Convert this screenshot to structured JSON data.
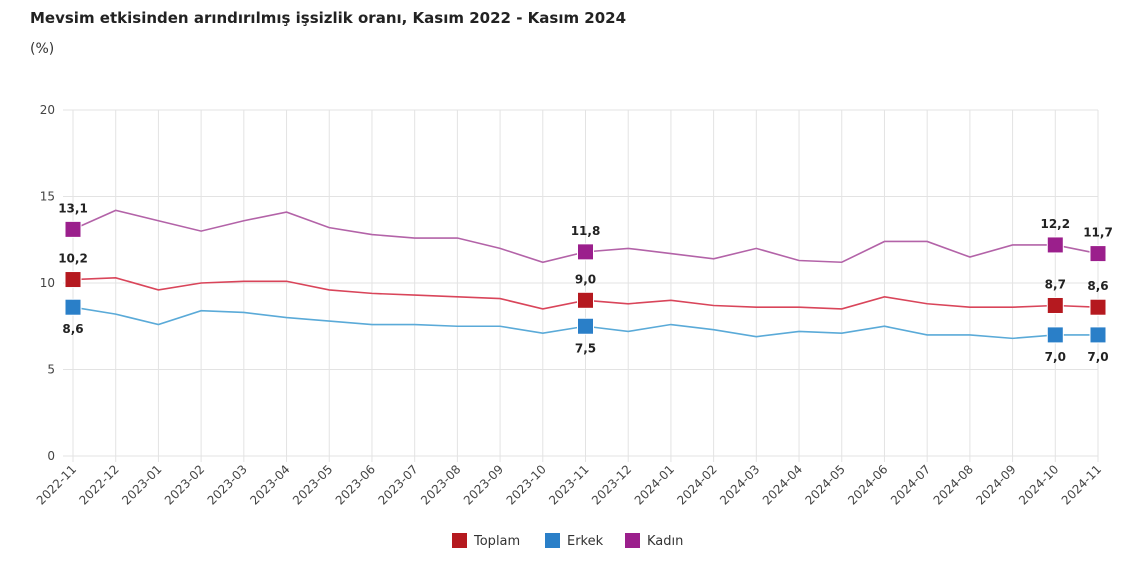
{
  "chart_data": {
    "type": "line",
    "title": "Mevsim etkisinden arındırılmış işsizlik oranı, Kasım 2022 - Kasım 2024",
    "subtitle": "(%)",
    "xlabel": "",
    "ylabel": "",
    "ylim": [
      0,
      20
    ],
    "yticks": [
      "0",
      "5",
      "10",
      "15",
      "20"
    ],
    "grid": true,
    "legend_position": "bottom",
    "categories": [
      "2022-11",
      "2022-12",
      "2023-01",
      "2023-02",
      "2023-03",
      "2023-04",
      "2023-05",
      "2023-06",
      "2023-07",
      "2023-08",
      "2023-09",
      "2023-10",
      "2023-11",
      "2023-12",
      "2024-01",
      "2024-02",
      "2024-03",
      "2024-04",
      "2024-05",
      "2024-06",
      "2024-07",
      "2024-08",
      "2024-09",
      "2024-10",
      "2024-11"
    ],
    "series": [
      {
        "name": "Toplam",
        "color": "#b5191f",
        "line_color": "#d9455a",
        "values": [
          10.2,
          10.3,
          9.6,
          10.0,
          10.1,
          10.1,
          9.6,
          9.4,
          9.3,
          9.2,
          9.1,
          8.5,
          9.0,
          8.8,
          9.0,
          8.7,
          8.6,
          8.6,
          8.5,
          9.2,
          8.8,
          8.6,
          8.6,
          8.7,
          8.6
        ],
        "labeled": [
          {
            "index": 0,
            "text": "10,2"
          },
          {
            "index": 12,
            "text": "9,0"
          },
          {
            "index": 23,
            "text": "8,7"
          },
          {
            "index": 24,
            "text": "8,6"
          }
        ],
        "label_pos": "above"
      },
      {
        "name": "Erkek",
        "color": "#2a7fc8",
        "line_color": "#5aaad8",
        "values": [
          8.6,
          8.2,
          7.6,
          8.4,
          8.3,
          8.0,
          7.8,
          7.6,
          7.6,
          7.5,
          7.5,
          7.1,
          7.5,
          7.2,
          7.6,
          7.3,
          6.9,
          7.2,
          7.1,
          7.5,
          7.0,
          7.0,
          6.8,
          7.0,
          7.0
        ],
        "labeled": [
          {
            "index": 0,
            "text": "8,6"
          },
          {
            "index": 12,
            "text": "7,5"
          },
          {
            "index": 23,
            "text": "7,0"
          },
          {
            "index": 24,
            "text": "7,0"
          }
        ],
        "label_pos": "below"
      },
      {
        "name": "Kadın",
        "color": "#9b1f8c",
        "line_color": "#b363a8",
        "values": [
          13.1,
          14.2,
          13.6,
          13.0,
          13.6,
          14.1,
          13.2,
          12.8,
          12.6,
          12.6,
          12.0,
          11.2,
          11.8,
          12.0,
          11.7,
          11.4,
          12.0,
          11.3,
          11.2,
          12.4,
          12.4,
          11.5,
          12.2,
          12.2,
          11.7
        ],
        "labeled": [
          {
            "index": 0,
            "text": "13,1"
          },
          {
            "index": 12,
            "text": "11,8"
          },
          {
            "index": 23,
            "text": "12,2"
          },
          {
            "index": 24,
            "text": "11,7"
          }
        ],
        "label_pos": "above"
      }
    ]
  }
}
